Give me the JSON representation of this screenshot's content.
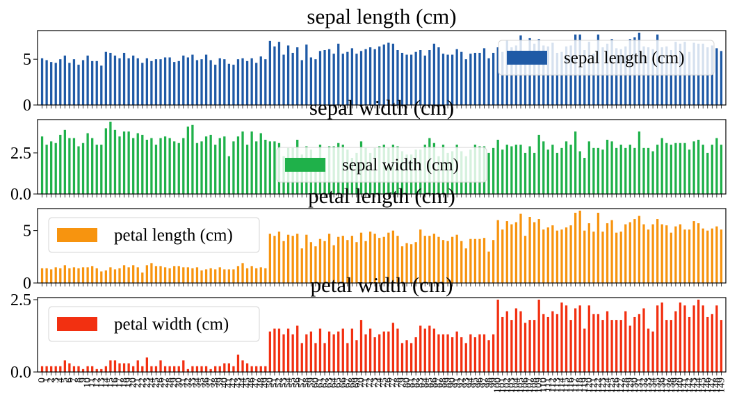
{
  "chart_data": [
    {
      "type": "bar",
      "title": "sepal length (cm)",
      "color": "#1f5aa6",
      "ylim": [
        0,
        7.9
      ],
      "yticks": [
        0,
        5
      ],
      "legend": "top-right",
      "series": [
        {
          "name": "sepal length (cm)",
          "values": [
            5.1,
            4.9,
            4.7,
            4.6,
            5.0,
            5.4,
            4.6,
            5.0,
            4.4,
            4.9,
            5.4,
            4.8,
            4.8,
            4.3,
            5.8,
            5.7,
            5.4,
            5.1,
            5.7,
            5.1,
            5.4,
            5.1,
            4.6,
            5.1,
            4.8,
            5.0,
            5.0,
            5.2,
            5.2,
            4.7,
            4.8,
            5.4,
            5.2,
            5.5,
            4.9,
            5.0,
            5.5,
            4.9,
            4.4,
            5.1,
            5.0,
            4.5,
            4.4,
            5.0,
            5.1,
            4.8,
            5.1,
            4.6,
            5.3,
            5.0,
            7.0,
            6.4,
            6.9,
            5.5,
            6.5,
            5.7,
            6.3,
            4.9,
            6.6,
            5.2,
            5.0,
            5.9,
            6.0,
            6.1,
            5.6,
            6.7,
            5.6,
            5.8,
            6.2,
            5.6,
            5.9,
            6.1,
            6.3,
            6.1,
            6.4,
            6.6,
            6.8,
            6.7,
            6.0,
            5.7,
            5.5,
            5.5,
            5.8,
            6.0,
            5.4,
            6.0,
            6.7,
            6.3,
            5.6,
            5.5,
            5.5,
            6.1,
            5.8,
            5.0,
            5.6,
            5.7,
            5.7,
            6.2,
            5.1,
            5.7,
            6.3,
            5.8,
            7.1,
            6.3,
            6.5,
            7.6,
            4.9,
            7.3,
            6.7,
            7.2,
            6.5,
            6.4,
            6.8,
            5.7,
            5.8,
            6.4,
            6.5,
            7.7,
            7.7,
            6.0,
            6.9,
            5.6,
            7.7,
            6.3,
            6.7,
            7.2,
            6.2,
            6.1,
            6.4,
            7.2,
            7.4,
            7.9,
            6.4,
            6.3,
            6.1,
            7.7,
            6.3,
            6.4,
            6.0,
            6.9,
            6.7,
            6.9,
            5.8,
            6.8,
            6.7,
            6.7,
            6.3,
            6.5,
            6.2,
            5.9
          ]
        }
      ]
    },
    {
      "type": "bar",
      "title": "sepal width (cm)",
      "color": "#1fb14a",
      "ylim": [
        0,
        4.4
      ],
      "yticks": [
        0.0,
        2.5
      ],
      "ytick_labels": [
        "0.0",
        "2.5"
      ],
      "legend": "center",
      "series": [
        {
          "name": "sepal width (cm)",
          "values": [
            3.5,
            3.0,
            3.2,
            3.1,
            3.6,
            3.9,
            3.4,
            3.4,
            2.9,
            3.1,
            3.7,
            3.4,
            3.0,
            3.0,
            4.0,
            4.4,
            3.9,
            3.5,
            3.8,
            3.8,
            3.4,
            3.7,
            3.6,
            3.3,
            3.4,
            3.0,
            3.4,
            3.5,
            3.4,
            3.2,
            3.1,
            3.4,
            4.1,
            4.2,
            3.1,
            3.2,
            3.5,
            3.6,
            3.0,
            3.4,
            3.5,
            2.3,
            3.2,
            3.5,
            3.8,
            3.0,
            3.8,
            3.2,
            3.7,
            3.3,
            3.2,
            3.2,
            3.1,
            2.3,
            2.8,
            2.8,
            3.3,
            2.4,
            2.9,
            2.7,
            2.0,
            3.0,
            2.2,
            2.9,
            2.9,
            3.1,
            3.0,
            2.7,
            2.2,
            2.5,
            3.2,
            2.8,
            2.5,
            2.8,
            2.9,
            3.0,
            2.8,
            3.0,
            2.9,
            2.6,
            2.4,
            2.4,
            2.7,
            2.7,
            3.0,
            3.4,
            3.1,
            2.3,
            3.0,
            2.5,
            2.6,
            3.0,
            2.6,
            2.3,
            2.7,
            3.0,
            2.9,
            2.9,
            2.5,
            2.8,
            3.3,
            2.7,
            3.0,
            2.9,
            3.0,
            3.0,
            2.5,
            2.9,
            2.5,
            3.6,
            3.2,
            2.7,
            3.0,
            2.5,
            2.8,
            3.2,
            3.0,
            3.8,
            2.6,
            2.2,
            3.2,
            2.8,
            2.8,
            2.7,
            3.3,
            3.2,
            2.8,
            3.0,
            2.8,
            3.0,
            2.8,
            3.8,
            2.8,
            2.8,
            2.6,
            3.0,
            3.4,
            3.1,
            3.0,
            3.1,
            3.1,
            3.1,
            2.7,
            3.2,
            3.3,
            3.0,
            2.5,
            3.0,
            3.4,
            3.0
          ]
        }
      ]
    },
    {
      "type": "bar",
      "title": "petal length (cm)",
      "color": "#f7940f",
      "ylim": [
        0,
        6.9
      ],
      "yticks": [
        0,
        5
      ],
      "legend": "top-left",
      "series": [
        {
          "name": "petal length (cm)",
          "values": [
            1.4,
            1.4,
            1.3,
            1.5,
            1.4,
            1.7,
            1.4,
            1.5,
            1.4,
            1.5,
            1.5,
            1.6,
            1.4,
            1.1,
            1.2,
            1.5,
            1.3,
            1.4,
            1.7,
            1.5,
            1.7,
            1.5,
            1.0,
            1.7,
            1.9,
            1.6,
            1.6,
            1.5,
            1.4,
            1.6,
            1.6,
            1.5,
            1.5,
            1.4,
            1.5,
            1.2,
            1.3,
            1.4,
            1.3,
            1.5,
            1.3,
            1.3,
            1.3,
            1.6,
            1.9,
            1.4,
            1.6,
            1.4,
            1.5,
            1.4,
            4.7,
            4.5,
            4.9,
            4.0,
            4.6,
            4.5,
            4.7,
            3.3,
            4.6,
            3.9,
            3.5,
            4.2,
            4.0,
            4.7,
            3.6,
            4.4,
            4.5,
            4.1,
            4.5,
            3.9,
            4.8,
            4.0,
            4.9,
            4.7,
            4.3,
            4.4,
            4.8,
            5.0,
            4.5,
            3.5,
            3.8,
            3.7,
            3.9,
            5.1,
            4.5,
            4.5,
            4.7,
            4.4,
            4.1,
            4.0,
            4.4,
            4.6,
            4.0,
            3.3,
            4.2,
            4.2,
            4.2,
            4.3,
            3.0,
            4.1,
            6.0,
            5.1,
            5.9,
            5.6,
            5.8,
            6.6,
            4.5,
            6.3,
            5.8,
            6.1,
            5.1,
            5.3,
            5.5,
            5.0,
            5.1,
            5.3,
            5.5,
            6.7,
            6.9,
            5.0,
            5.7,
            4.9,
            6.7,
            4.9,
            5.7,
            6.0,
            4.8,
            4.9,
            5.6,
            5.8,
            6.1,
            6.4,
            5.6,
            5.1,
            5.6,
            6.1,
            5.6,
            5.5,
            4.8,
            5.4,
            5.6,
            5.1,
            5.1,
            5.9,
            5.7,
            5.2,
            5.0,
            5.2,
            5.4,
            5.1
          ]
        }
      ]
    },
    {
      "type": "bar",
      "title": "petal width (cm)",
      "color": "#f23011",
      "ylim": [
        0,
        2.5
      ],
      "yticks": [
        0.0,
        2.5
      ],
      "ytick_labels": [
        "0.0",
        "2.5"
      ],
      "legend": "top-left",
      "xticks": [
        "0",
        "1",
        "2",
        "3",
        "4",
        "5",
        "6",
        "7",
        "8",
        "9",
        "10",
        "11",
        "12",
        "13",
        "14",
        "15",
        "16",
        "17",
        "18",
        "19",
        "20",
        "21",
        "22",
        "23",
        "24",
        "25",
        "26",
        "27",
        "28",
        "29",
        "30",
        "31",
        "32",
        "33",
        "34",
        "35",
        "36",
        "37",
        "38",
        "39",
        "40",
        "41",
        "42",
        "43",
        "44",
        "45",
        "46",
        "47",
        "48",
        "49",
        "50",
        "51",
        "52",
        "53",
        "54",
        "55",
        "56",
        "57",
        "58",
        "59",
        "60",
        "61",
        "62",
        "63",
        "64",
        "65",
        "66",
        "67",
        "68",
        "69",
        "70",
        "71",
        "72",
        "73",
        "74",
        "75",
        "76",
        "77",
        "78",
        "79",
        "80",
        "81",
        "82",
        "83",
        "84",
        "85",
        "86",
        "87",
        "88",
        "89",
        "90",
        "91",
        "92",
        "93",
        "94",
        "95",
        "96",
        "97",
        "98",
        "99",
        "100",
        "101",
        "102",
        "103",
        "104",
        "105",
        "106",
        "107",
        "108",
        "109",
        "110",
        "111",
        "112",
        "113",
        "114",
        "115",
        "116",
        "117",
        "118",
        "119",
        "120",
        "121",
        "122",
        "123",
        "124",
        "125",
        "126",
        "127",
        "128",
        "129",
        "130",
        "131",
        "132",
        "133",
        "134",
        "135",
        "136",
        "137",
        "138",
        "139",
        "140",
        "141",
        "142",
        "143",
        "144",
        "145",
        "146",
        "147",
        "148",
        "149"
      ],
      "series": [
        {
          "name": "petal width (cm)",
          "values": [
            0.2,
            0.2,
            0.2,
            0.2,
            0.2,
            0.4,
            0.3,
            0.2,
            0.2,
            0.1,
            0.2,
            0.2,
            0.1,
            0.1,
            0.2,
            0.4,
            0.4,
            0.3,
            0.3,
            0.3,
            0.2,
            0.4,
            0.2,
            0.5,
            0.2,
            0.2,
            0.4,
            0.2,
            0.2,
            0.2,
            0.2,
            0.4,
            0.1,
            0.2,
            0.2,
            0.2,
            0.2,
            0.1,
            0.2,
            0.2,
            0.3,
            0.3,
            0.2,
            0.6,
            0.4,
            0.3,
            0.2,
            0.2,
            0.2,
            0.2,
            1.4,
            1.5,
            1.5,
            1.3,
            1.5,
            1.3,
            1.6,
            1.0,
            1.3,
            1.4,
            1.0,
            1.5,
            1.0,
            1.4,
            1.3,
            1.4,
            1.5,
            1.0,
            1.5,
            1.1,
            1.8,
            1.3,
            1.5,
            1.2,
            1.3,
            1.4,
            1.4,
            1.7,
            1.5,
            1.0,
            1.1,
            1.0,
            1.2,
            1.6,
            1.5,
            1.6,
            1.5,
            1.3,
            1.3,
            1.3,
            1.2,
            1.4,
            1.2,
            1.0,
            1.3,
            1.2,
            1.3,
            1.3,
            1.1,
            1.3,
            2.5,
            1.9,
            2.1,
            1.8,
            2.2,
            2.1,
            1.7,
            1.8,
            1.8,
            2.5,
            2.0,
            1.9,
            2.1,
            2.0,
            2.4,
            2.3,
            1.8,
            2.2,
            2.3,
            1.5,
            2.3,
            2.0,
            2.0,
            1.8,
            2.1,
            1.8,
            1.8,
            1.8,
            2.1,
            1.6,
            1.9,
            2.0,
            2.2,
            1.5,
            1.4,
            2.3,
            2.4,
            1.8,
            1.8,
            2.1,
            2.4,
            2.3,
            1.9,
            2.3,
            2.5,
            2.3,
            1.9,
            2.0,
            2.3,
            1.8
          ]
        }
      ]
    }
  ]
}
